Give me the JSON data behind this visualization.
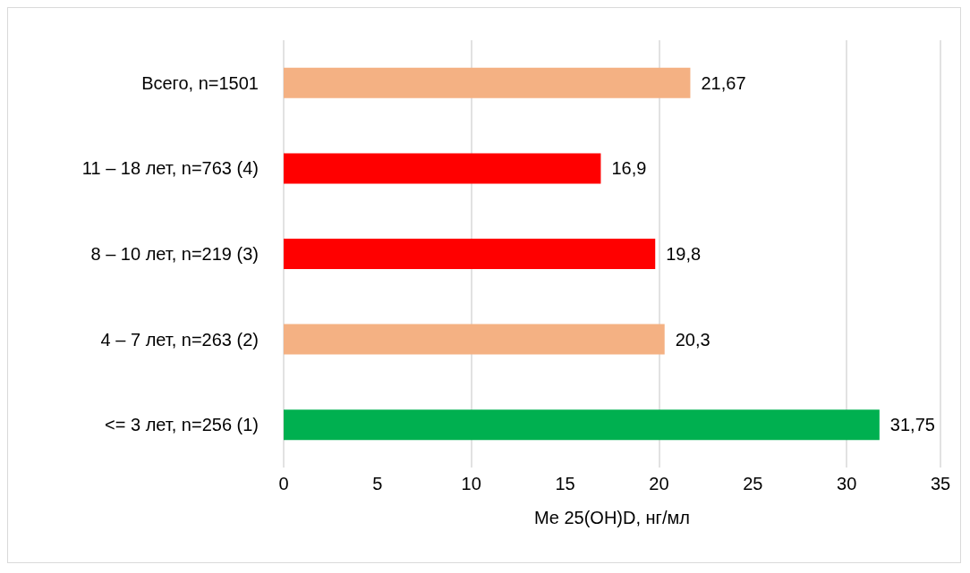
{
  "chart_data": {
    "type": "bar",
    "orientation": "horizontal",
    "xlabel": "Me 25(OH)D, нг/мл",
    "categories": [
      "Всего, n=1501",
      "11 – 18 лет, n=763 (4)",
      "8 – 10 лет, n=219 (3)",
      "4 – 7 лет, n=263 (2)",
      "<= 3 лет, n=256 (1)"
    ],
    "values": [
      21.67,
      16.9,
      19.8,
      20.3,
      31.75
    ],
    "colors": [
      "#f4b183",
      "#ff0000",
      "#ff0000",
      "#f4b183",
      "#00b050"
    ],
    "value_labels": [
      "21,67",
      "16,9",
      "19,8",
      "20,3",
      "31,75"
    ],
    "xlim": [
      0,
      35
    ],
    "xticks": [
      0,
      5,
      10,
      15,
      20,
      25,
      30,
      35
    ],
    "grid": "x"
  }
}
